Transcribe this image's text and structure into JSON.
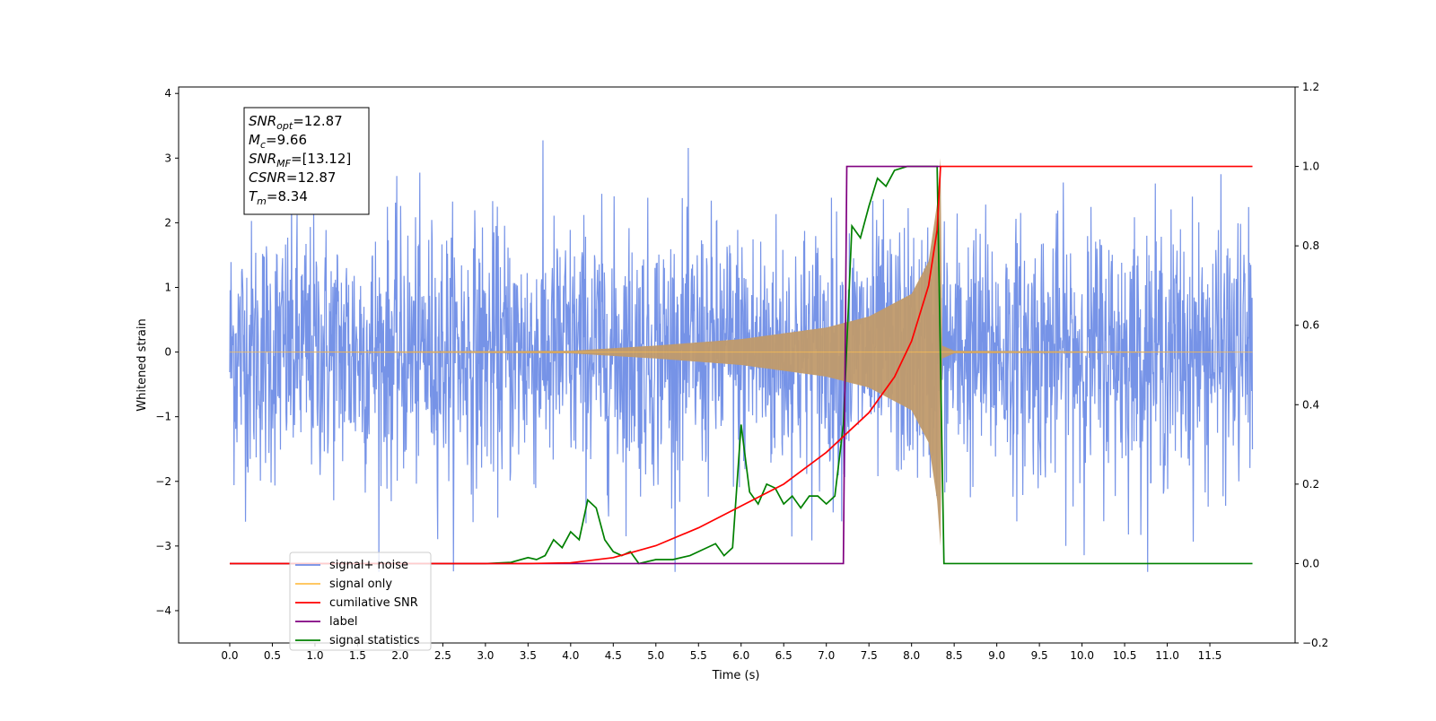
{
  "chart_data": {
    "type": "line",
    "xlabel": "Time (s)",
    "ylabel_left": "Whitened strain",
    "ylabel_right": "",
    "xlim": [
      -0.6,
      12.5
    ],
    "ylim_left": [
      -4.5,
      4.1
    ],
    "ylim_right": [
      -0.2,
      1.2
    ],
    "x_ticks": [
      "0.0",
      "0.5",
      "1.0",
      "1.5",
      "2.0",
      "2.5",
      "3.0",
      "3.5",
      "4.0",
      "4.5",
      "5.0",
      "5.5",
      "6.0",
      "6.5",
      "7.0",
      "7.5",
      "8.0",
      "8.5",
      "9.0",
      "9.5",
      "10.0",
      "10.5",
      "11.0",
      "11.5"
    ],
    "y_ticks_left": [
      "−4",
      "−3",
      "−2",
      "−1",
      "0",
      "1",
      "2",
      "3",
      "4"
    ],
    "y_ticks_right": [
      "−0.2",
      "0.0",
      "0.2",
      "0.4",
      "0.6",
      "0.8",
      "1.0",
      "1.2"
    ],
    "grid": false,
    "legend_position": "lower-left",
    "annotation_box": {
      "lines": [
        {
          "var": "SNR",
          "sub": "opt",
          "value": "=12.87"
        },
        {
          "var": "M",
          "sub": "c",
          "value": "=9.66"
        },
        {
          "var": "SNR",
          "sub": "MF",
          "value": "=[13.12]"
        },
        {
          "var": "CSNR",
          "sub": "",
          "value": "=12.87"
        },
        {
          "var": "T",
          "sub": "m",
          "value": "=8.34"
        }
      ]
    },
    "series": [
      {
        "name": "signal+ noise",
        "color": "#6f8de6",
        "axis": "left",
        "note": "whitened noise, amplitude about ±3 std, spanning 0.0 to 12.0 s",
        "x_range": [
          0.0,
          12.0
        ],
        "envelope": [
          -3.4,
          3.7
        ]
      },
      {
        "name": "signal only",
        "color": "#ffc04d",
        "axis": "left",
        "x_range": [
          0.0,
          12.0
        ],
        "merger_time": 8.34,
        "envelope_points": [
          [
            0.0,
            0.0
          ],
          [
            4.0,
            0.02
          ],
          [
            5.0,
            0.1
          ],
          [
            6.0,
            0.2
          ],
          [
            7.0,
            0.38
          ],
          [
            7.5,
            0.55
          ],
          [
            8.0,
            0.9
          ],
          [
            8.2,
            1.4
          ],
          [
            8.3,
            2.3
          ],
          [
            8.34,
            3.0
          ],
          [
            8.36,
            0.1
          ],
          [
            8.5,
            0.02
          ],
          [
            12.0,
            0.0
          ]
        ]
      },
      {
        "name": "cumilative SNR",
        "color": "#ff0000",
        "axis": "right",
        "points": [
          [
            0.0,
            0.0
          ],
          [
            3.5,
            0.0
          ],
          [
            4.0,
            0.002
          ],
          [
            4.5,
            0.015
          ],
          [
            5.0,
            0.045
          ],
          [
            5.5,
            0.09
          ],
          [
            6.0,
            0.145
          ],
          [
            6.5,
            0.2
          ],
          [
            7.0,
            0.28
          ],
          [
            7.5,
            0.38
          ],
          [
            7.8,
            0.47
          ],
          [
            8.0,
            0.56
          ],
          [
            8.2,
            0.7
          ],
          [
            8.3,
            0.84
          ],
          [
            8.34,
            1.0
          ],
          [
            12.0,
            1.0
          ]
        ]
      },
      {
        "name": "label",
        "color": "#800080",
        "axis": "right",
        "points": [
          [
            0.0,
            0.0
          ],
          [
            7.2,
            0.0
          ],
          [
            7.24,
            1.0
          ],
          [
            8.34,
            1.0
          ]
        ]
      },
      {
        "name": "signal statistics",
        "color": "#008000",
        "axis": "right",
        "points": [
          [
            0.0,
            0.0
          ],
          [
            3.0,
            0.0
          ],
          [
            3.3,
            0.003
          ],
          [
            3.5,
            0.015
          ],
          [
            3.6,
            0.01
          ],
          [
            3.7,
            0.02
          ],
          [
            3.8,
            0.06
          ],
          [
            3.9,
            0.04
          ],
          [
            4.0,
            0.08
          ],
          [
            4.1,
            0.06
          ],
          [
            4.2,
            0.16
          ],
          [
            4.3,
            0.14
          ],
          [
            4.4,
            0.06
          ],
          [
            4.5,
            0.03
          ],
          [
            4.6,
            0.02
          ],
          [
            4.7,
            0.03
          ],
          [
            4.8,
            0.0
          ],
          [
            5.0,
            0.01
          ],
          [
            5.2,
            0.01
          ],
          [
            5.4,
            0.02
          ],
          [
            5.5,
            0.03
          ],
          [
            5.7,
            0.05
          ],
          [
            5.8,
            0.02
          ],
          [
            5.9,
            0.04
          ],
          [
            6.0,
            0.35
          ],
          [
            6.1,
            0.18
          ],
          [
            6.2,
            0.15
          ],
          [
            6.3,
            0.2
          ],
          [
            6.4,
            0.19
          ],
          [
            6.5,
            0.15
          ],
          [
            6.6,
            0.17
          ],
          [
            6.7,
            0.14
          ],
          [
            6.8,
            0.17
          ],
          [
            6.9,
            0.17
          ],
          [
            7.0,
            0.15
          ],
          [
            7.1,
            0.17
          ],
          [
            7.2,
            0.35
          ],
          [
            7.3,
            0.85
          ],
          [
            7.4,
            0.82
          ],
          [
            7.5,
            0.9
          ],
          [
            7.6,
            0.97
          ],
          [
            7.7,
            0.95
          ],
          [
            7.8,
            0.99
          ],
          [
            7.95,
            1.0
          ],
          [
            8.2,
            1.0
          ],
          [
            8.3,
            1.0
          ],
          [
            8.38,
            0.0
          ],
          [
            12.0,
            0.0
          ]
        ]
      }
    ]
  }
}
